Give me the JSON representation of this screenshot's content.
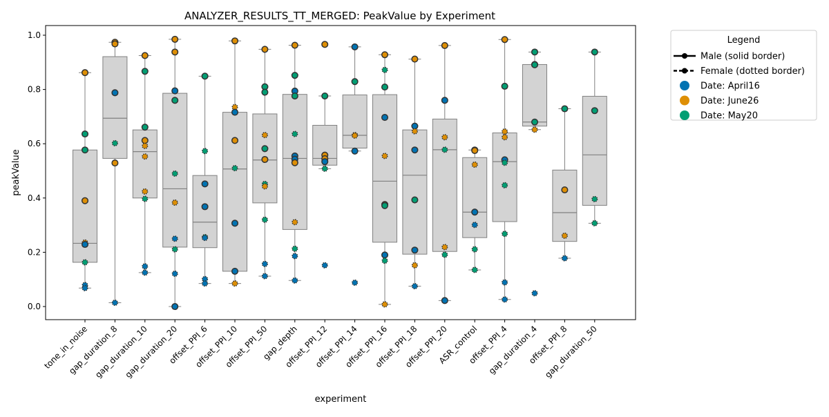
{
  "chart_data": {
    "type": "box",
    "title": "ANALYZER_RESULTS_TT_MERGED: PeakValue by Experiment",
    "xlabel": "experiment",
    "ylabel": "peakValue",
    "ylim": [
      -0.05,
      1.04
    ],
    "yticks": [
      "0.0",
      "0.2",
      "0.4",
      "0.6",
      "0.8",
      "1.0"
    ],
    "ytick_values": [
      0.0,
      0.2,
      0.4,
      0.6,
      0.8,
      1.0
    ],
    "grid": false,
    "legend": {
      "title": "Legend",
      "placement": "outside-right",
      "entries": [
        {
          "label": "Male (solid border)",
          "kind": "line-solid"
        },
        {
          "label": "Female (dotted border)",
          "kind": "line-dotted"
        },
        {
          "label": "Date: April16",
          "kind": "dot",
          "color": "#0173b2"
        },
        {
          "label": "Date: June26",
          "kind": "dot",
          "color": "#de8f05"
        },
        {
          "label": "Date: May20",
          "kind": "dot",
          "color": "#029e73"
        }
      ]
    },
    "colors": {
      "April16": "#0173b2",
      "June26": "#de8f05",
      "May20": "#029e73",
      "box_fill": "#d3d3d3",
      "box_edge": "#808080"
    },
    "categories": [
      {
        "name": "tone_in_noise",
        "box": {
          "q1": 0.163,
          "median": 0.233,
          "q3": 0.577,
          "whislo": 0.068,
          "whishi": 0.862
        },
        "points": [
          [
            0.862,
            "June26",
            "M"
          ],
          [
            0.636,
            "May20",
            "M"
          ],
          [
            0.577,
            "May20",
            "M"
          ],
          [
            0.39,
            "June26",
            "M"
          ],
          [
            0.236,
            "June26",
            "F"
          ],
          [
            0.229,
            "April16",
            "M"
          ],
          [
            0.163,
            "May20",
            "F"
          ],
          [
            0.079,
            "April16",
            "F"
          ],
          [
            0.068,
            "April16",
            "F"
          ]
        ]
      },
      {
        "name": "gap_duration_8",
        "box": {
          "q1": 0.546,
          "median": 0.694,
          "q3": 0.921,
          "whislo": 0.014,
          "whishi": 0.974
        },
        "points": [
          [
            0.974,
            "June26",
            "M"
          ],
          [
            0.968,
            "June26",
            "M"
          ],
          [
            0.788,
            "April16",
            "M"
          ],
          [
            0.602,
            "May20",
            "F"
          ],
          [
            0.529,
            "June26",
            "M"
          ],
          [
            0.014,
            "April16",
            "F"
          ]
        ]
      },
      {
        "name": "gap_duration_10",
        "box": {
          "q1": 0.4,
          "median": 0.571,
          "q3": 0.651,
          "whislo": 0.125,
          "whishi": 0.925
        },
        "points": [
          [
            0.925,
            "June26",
            "M"
          ],
          [
            0.867,
            "May20",
            "M"
          ],
          [
            0.661,
            "May20",
            "M"
          ],
          [
            0.612,
            "June26",
            "M"
          ],
          [
            0.592,
            "June26",
            "F"
          ],
          [
            0.553,
            "June26",
            "F"
          ],
          [
            0.424,
            "June26",
            "F"
          ],
          [
            0.397,
            "May20",
            "F"
          ],
          [
            0.148,
            "April16",
            "F"
          ],
          [
            0.125,
            "April16",
            "F"
          ]
        ]
      },
      {
        "name": "gap_duration_20",
        "box": {
          "q1": 0.219,
          "median": 0.434,
          "q3": 0.786,
          "whislo": 0.0,
          "whishi": 0.985
        },
        "points": [
          [
            0.985,
            "June26",
            "M"
          ],
          [
            0.938,
            "June26",
            "M"
          ],
          [
            0.795,
            "April16",
            "M"
          ],
          [
            0.76,
            "May20",
            "M"
          ],
          [
            0.49,
            "May20",
            "F"
          ],
          [
            0.383,
            "June26",
            "F"
          ],
          [
            0.25,
            "April16",
            "F"
          ],
          [
            0.211,
            "May20",
            "F"
          ],
          [
            0.121,
            "April16",
            "F"
          ],
          [
            0.0,
            "April16",
            "M"
          ]
        ]
      },
      {
        "name": "offset_PPI_6",
        "box": {
          "q1": 0.217,
          "median": 0.311,
          "q3": 0.483,
          "whislo": 0.085,
          "whishi": 0.849
        },
        "points": [
          [
            0.849,
            "May20",
            "M"
          ],
          [
            0.573,
            "May20",
            "F"
          ],
          [
            0.452,
            "April16",
            "M"
          ],
          [
            0.368,
            "April16",
            "M"
          ],
          [
            0.256,
            "May20",
            "F"
          ],
          [
            0.253,
            "April16",
            "F"
          ],
          [
            0.101,
            "April16",
            "F"
          ],
          [
            0.085,
            "April16",
            "F"
          ]
        ]
      },
      {
        "name": "offset_PPI_10",
        "box": {
          "q1": 0.13,
          "median": 0.507,
          "q3": 0.716,
          "whislo": 0.085,
          "whishi": 0.979
        },
        "points": [
          [
            0.979,
            "June26",
            "M"
          ],
          [
            0.735,
            "June26",
            "F"
          ],
          [
            0.716,
            "April16",
            "M"
          ],
          [
            0.612,
            "June26",
            "M"
          ],
          [
            0.51,
            "May20",
            "F"
          ],
          [
            0.307,
            "April16",
            "M"
          ],
          [
            0.13,
            "April16",
            "M"
          ],
          [
            0.085,
            "June26",
            "F"
          ]
        ]
      },
      {
        "name": "offset_PPI_50",
        "box": {
          "q1": 0.382,
          "median": 0.54,
          "q3": 0.71,
          "whislo": 0.112,
          "whishi": 0.948
        },
        "points": [
          [
            0.948,
            "June26",
            "M"
          ],
          [
            0.81,
            "May20",
            "M"
          ],
          [
            0.79,
            "May20",
            "M"
          ],
          [
            0.632,
            "June26",
            "F"
          ],
          [
            0.582,
            "May20",
            "M"
          ],
          [
            0.542,
            "June26",
            "M"
          ],
          [
            0.452,
            "May20",
            "F"
          ],
          [
            0.443,
            "June26",
            "F"
          ],
          [
            0.32,
            "May20",
            "F"
          ],
          [
            0.157,
            "April16",
            "F"
          ],
          [
            0.112,
            "April16",
            "F"
          ]
        ]
      },
      {
        "name": "gap_depth",
        "box": {
          "q1": 0.284,
          "median": 0.546,
          "q3": 0.782,
          "whislo": 0.096,
          "whishi": 0.963
        },
        "points": [
          [
            0.963,
            "June26",
            "M"
          ],
          [
            0.852,
            "May20",
            "M"
          ],
          [
            0.794,
            "April16",
            "M"
          ],
          [
            0.776,
            "May20",
            "M"
          ],
          [
            0.636,
            "May20",
            "F"
          ],
          [
            0.555,
            "April16",
            "M"
          ],
          [
            0.543,
            "April16",
            "M"
          ],
          [
            0.53,
            "June26",
            "M"
          ],
          [
            0.311,
            "June26",
            "F"
          ],
          [
            0.213,
            "May20",
            "F"
          ],
          [
            0.186,
            "April16",
            "F"
          ],
          [
            0.096,
            "April16",
            "F"
          ]
        ]
      },
      {
        "name": "offset_PPI_12",
        "box": {
          "q1": 0.521,
          "median": 0.546,
          "q3": 0.668,
          "whislo": 0.508,
          "whishi": 0.776
        },
        "points": [
          [
            0.966,
            "June26",
            "M"
          ],
          [
            0.776,
            "May20",
            "M"
          ],
          [
            0.558,
            "June26",
            "M"
          ],
          [
            0.545,
            "June26",
            "M"
          ],
          [
            0.534,
            "April16",
            "M"
          ],
          [
            0.508,
            "May20",
            "F"
          ],
          [
            0.152,
            "April16",
            "F"
          ]
        ]
      },
      {
        "name": "offset_PPI_14",
        "box": {
          "q1": 0.584,
          "median": 0.631,
          "q3": 0.78,
          "whislo": 0.573,
          "whishi": 0.957
        },
        "points": [
          [
            0.957,
            "April16",
            "M"
          ],
          [
            0.829,
            "May20",
            "M"
          ],
          [
            0.632,
            "June26",
            "F"
          ],
          [
            0.63,
            "June26",
            "F"
          ],
          [
            0.573,
            "April16",
            "M"
          ],
          [
            0.088,
            "April16",
            "F"
          ]
        ]
      },
      {
        "name": "offset_PPI_16",
        "box": {
          "q1": 0.237,
          "median": 0.462,
          "q3": 0.781,
          "whislo": 0.008,
          "whishi": 0.928
        },
        "points": [
          [
            0.928,
            "June26",
            "M"
          ],
          [
            0.872,
            "May20",
            "F"
          ],
          [
            0.809,
            "May20",
            "M"
          ],
          [
            0.697,
            "April16",
            "M"
          ],
          [
            0.555,
            "June26",
            "F"
          ],
          [
            0.376,
            "June26",
            "M"
          ],
          [
            0.372,
            "May20",
            "M"
          ],
          [
            0.19,
            "April16",
            "M"
          ],
          [
            0.169,
            "May20",
            "F"
          ],
          [
            0.008,
            "June26",
            "F"
          ]
        ]
      },
      {
        "name": "offset_PPI_18",
        "box": {
          "q1": 0.193,
          "median": 0.484,
          "q3": 0.651,
          "whislo": 0.075,
          "whishi": 0.912
        },
        "points": [
          [
            0.912,
            "June26",
            "M"
          ],
          [
            0.665,
            "April16",
            "M"
          ],
          [
            0.646,
            "June26",
            "F"
          ],
          [
            0.577,
            "April16",
            "M"
          ],
          [
            0.393,
            "May20",
            "M"
          ],
          [
            0.208,
            "April16",
            "M"
          ],
          [
            0.152,
            "June26",
            "F"
          ],
          [
            0.075,
            "April16",
            "F"
          ]
        ]
      },
      {
        "name": "offset_PPI_20",
        "box": {
          "q1": 0.203,
          "median": 0.578,
          "q3": 0.691,
          "whislo": 0.022,
          "whishi": 0.962
        },
        "points": [
          [
            0.962,
            "June26",
            "M"
          ],
          [
            0.76,
            "April16",
            "M"
          ],
          [
            0.624,
            "June26",
            "F"
          ],
          [
            0.578,
            "May20",
            "F"
          ],
          [
            0.219,
            "June26",
            "F"
          ],
          [
            0.191,
            "May20",
            "F"
          ],
          [
            0.022,
            "April16",
            "M"
          ]
        ]
      },
      {
        "name": "ASR_control",
        "box": {
          "q1": 0.254,
          "median": 0.348,
          "q3": 0.549,
          "whislo": 0.135,
          "whishi": 0.577
        },
        "points": [
          [
            0.577,
            "May20",
            "M"
          ],
          [
            0.575,
            "June26",
            "M"
          ],
          [
            0.523,
            "June26",
            "F"
          ],
          [
            0.348,
            "April16",
            "M"
          ],
          [
            0.301,
            "April16",
            "F"
          ],
          [
            0.211,
            "May20",
            "F"
          ],
          [
            0.135,
            "May20",
            "F"
          ]
        ]
      },
      {
        "name": "offset_PPI_4",
        "box": {
          "q1": 0.313,
          "median": 0.534,
          "q3": 0.64,
          "whislo": 0.026,
          "whishi": 0.984
        },
        "points": [
          [
            0.984,
            "June26",
            "M"
          ],
          [
            0.812,
            "May20",
            "M"
          ],
          [
            0.645,
            "June26",
            "F"
          ],
          [
            0.624,
            "June26",
            "F"
          ],
          [
            0.541,
            "April16",
            "M"
          ],
          [
            0.53,
            "May20",
            "F"
          ],
          [
            0.447,
            "May20",
            "F"
          ],
          [
            0.268,
            "May20",
            "F"
          ],
          [
            0.089,
            "April16",
            "F"
          ],
          [
            0.026,
            "April16",
            "F"
          ]
        ]
      },
      {
        "name": "gap_duration_4",
        "box": {
          "q1": 0.665,
          "median": 0.68,
          "q3": 0.892,
          "whislo": 0.652,
          "whishi": 0.938
        },
        "points": [
          [
            0.938,
            "May20",
            "M"
          ],
          [
            0.892,
            "May20",
            "M"
          ],
          [
            0.891,
            "May20",
            "M"
          ],
          [
            0.68,
            "May20",
            "M"
          ],
          [
            0.652,
            "June26",
            "F"
          ],
          [
            0.049,
            "April16",
            "F"
          ]
        ]
      },
      {
        "name": "offset_PPI_8",
        "box": {
          "q1": 0.24,
          "median": 0.346,
          "q3": 0.503,
          "whislo": 0.178,
          "whishi": 0.729
        },
        "points": [
          [
            0.729,
            "May20",
            "M"
          ],
          [
            0.43,
            "June26",
            "M"
          ],
          [
            0.261,
            "June26",
            "F"
          ],
          [
            0.178,
            "April16",
            "F"
          ]
        ]
      },
      {
        "name": "gap_duration_50",
        "box": {
          "q1": 0.373,
          "median": 0.559,
          "q3": 0.775,
          "whislo": 0.307,
          "whishi": 0.938
        },
        "points": [
          [
            0.938,
            "May20",
            "M"
          ],
          [
            0.722,
            "May20",
            "M"
          ],
          [
            0.396,
            "May20",
            "F"
          ],
          [
            0.307,
            "May20",
            "F"
          ]
        ]
      }
    ]
  }
}
